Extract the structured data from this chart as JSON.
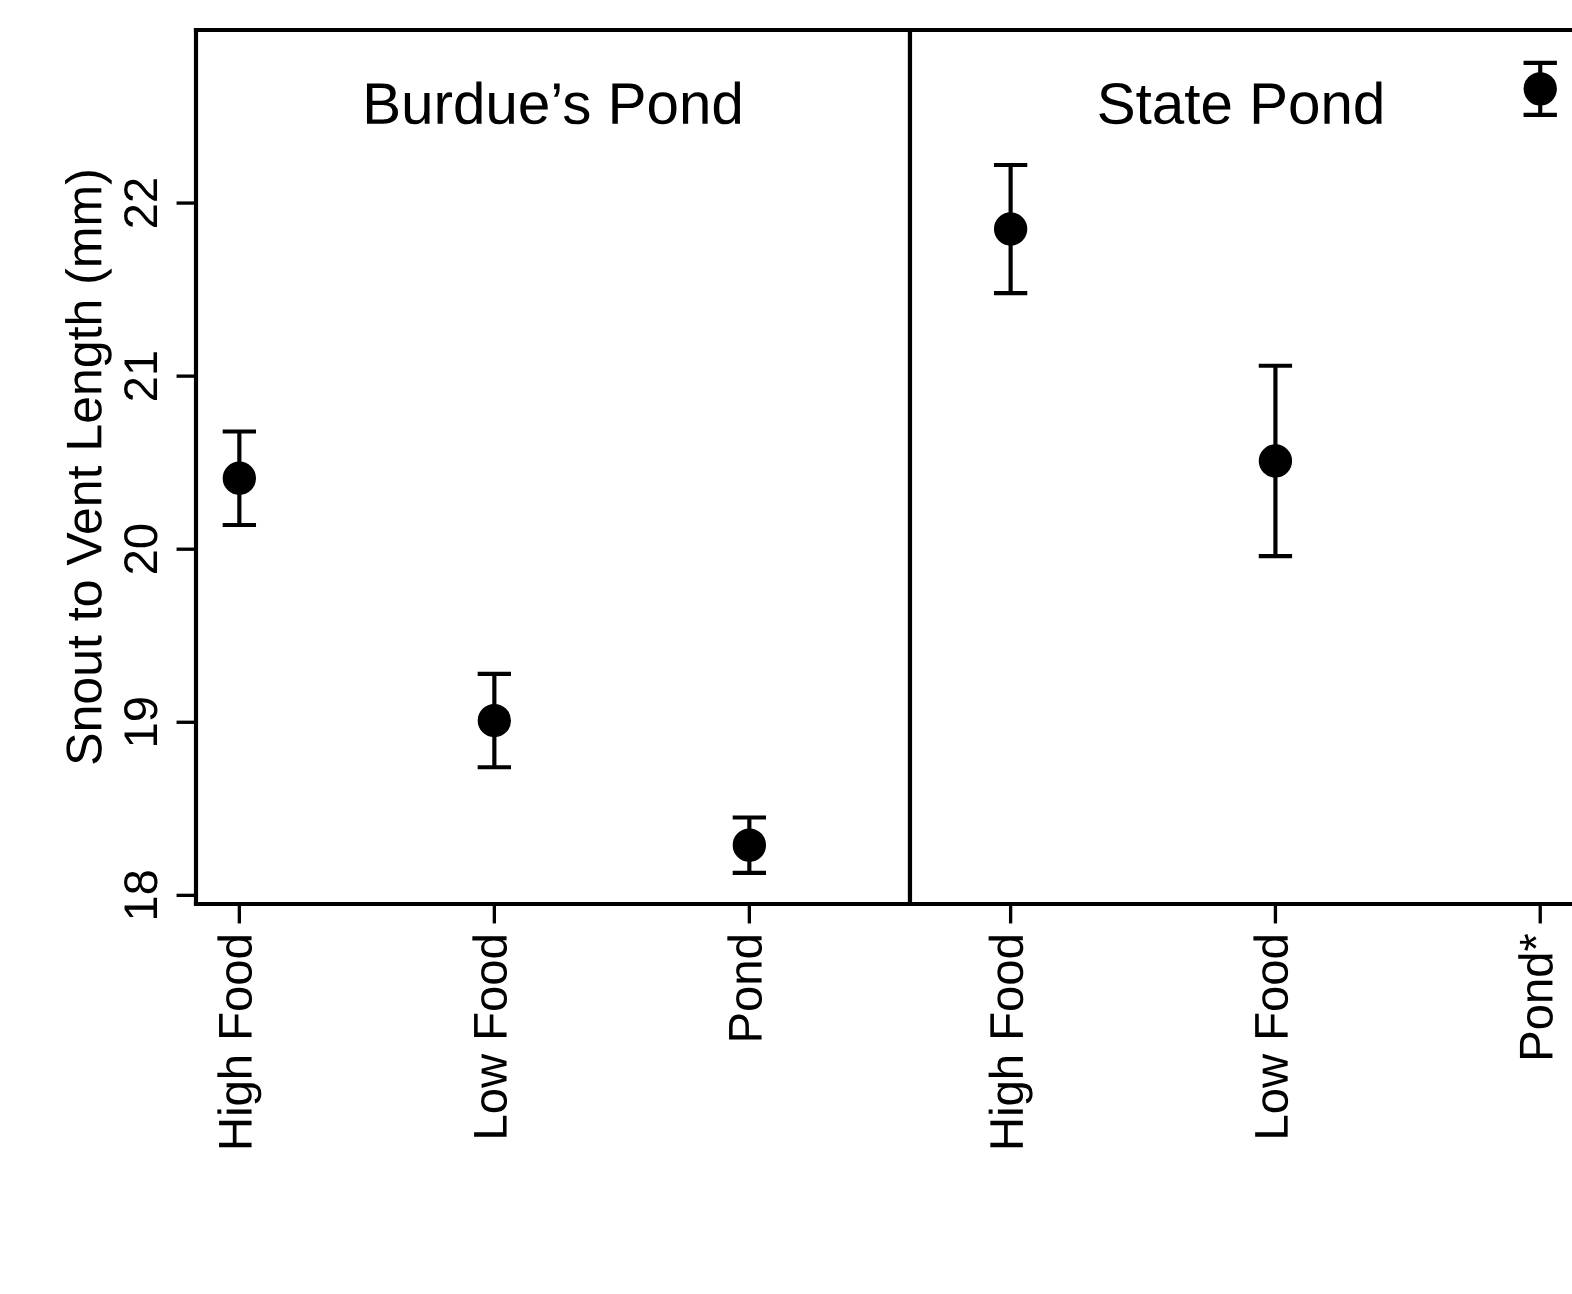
{
  "chart_data": [
    {
      "type": "scatter",
      "title": "Burdue’s Pond",
      "ylabel": "Snout to Vent Length (mm)",
      "categories": [
        "High Food",
        "Low Food",
        "Pond"
      ],
      "series": [
        {
          "color": "#000000",
          "values": [
            20.41,
            19.01,
            18.29
          ],
          "errors": [
            0.27,
            0.27,
            0.16
          ]
        }
      ],
      "ylim": [
        17.95,
        23.0
      ],
      "yticks": [
        18,
        19,
        20,
        21,
        22
      ],
      "marker": "circle",
      "grid": false,
      "legend": false
    },
    {
      "type": "scatter",
      "title": "State Pond",
      "categories": [
        "High Food",
        "Low Food",
        "Pond*"
      ],
      "series": [
        {
          "color": "#000000",
          "values": [
            21.85,
            20.51,
            22.66
          ],
          "errors": [
            0.37,
            0.55,
            0.15
          ]
        }
      ],
      "ylim": [
        17.95,
        23.0
      ],
      "yticks": [
        18,
        19,
        20,
        21,
        22
      ],
      "tick_labels": "x",
      "marker": "circle",
      "grid": false,
      "legend": false
    }
  ]
}
